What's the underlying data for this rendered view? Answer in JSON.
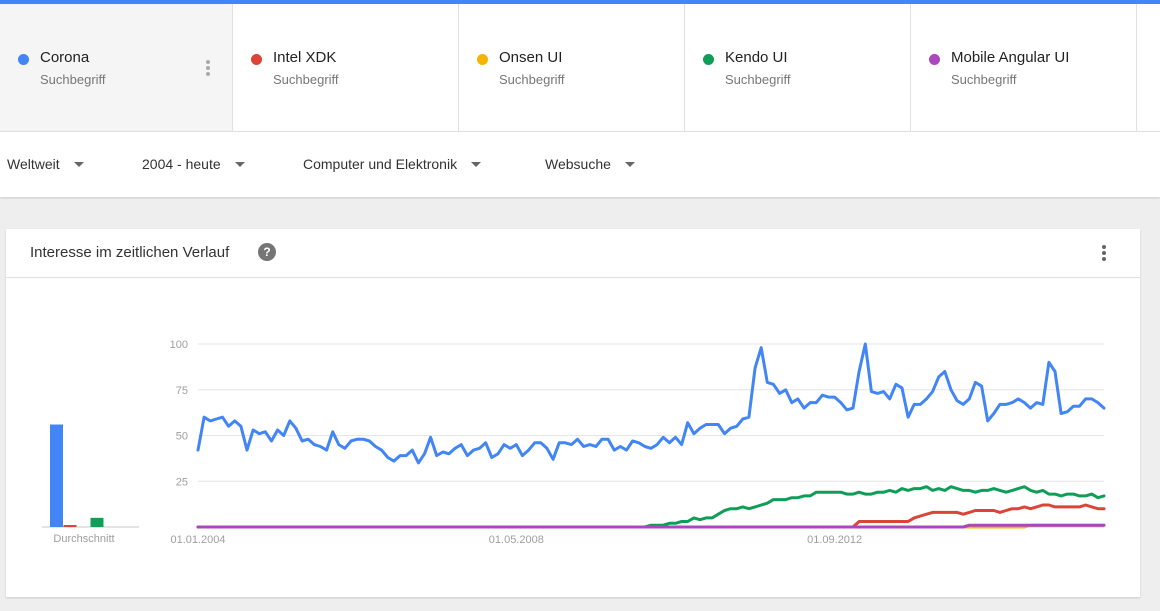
{
  "terms": [
    {
      "name": "Corona",
      "sub": "Suchbegriff",
      "color": "#4285f4"
    },
    {
      "name": "Intel XDK",
      "sub": "Suchbegriff",
      "color": "#db4437"
    },
    {
      "name": "Onsen UI",
      "sub": "Suchbegriff",
      "color": "#f4b400"
    },
    {
      "name": "Kendo UI",
      "sub": "Suchbegriff",
      "color": "#0f9d58"
    },
    {
      "name": "Mobile Angular UI",
      "sub": "Suchbegriff",
      "color": "#ab47bc"
    }
  ],
  "filters": {
    "region": "Weltweit",
    "time": "2004 - heute",
    "category": "Computer und Elektronik",
    "search_type": "Websuche"
  },
  "card": {
    "title": "Interesse im zeitlichen Verlauf",
    "help_icon": "?"
  },
  "chart_data": {
    "type": "line",
    "ylim": [
      0,
      100
    ],
    "y_ticks": [
      "100",
      "75",
      "50",
      "25"
    ],
    "x_ticks": [
      {
        "label": "01.01.2004",
        "index": 0
      },
      {
        "label": "01.05.2008",
        "index": 52
      },
      {
        "label": "01.09.2012",
        "index": 104
      }
    ],
    "average_label": "Durchschnitt",
    "averages": [
      {
        "name": "Corona",
        "value": 56,
        "color": "#4285f4"
      },
      {
        "name": "Intel XDK",
        "value": 1,
        "color": "#db4437"
      },
      {
        "name": "Onsen UI",
        "value": 0,
        "color": "#f4b400"
      },
      {
        "name": "Kendo UI",
        "value": 5,
        "color": "#0f9d58"
      },
      {
        "name": "Mobile Angular UI",
        "value": 0,
        "color": "#ab47bc"
      }
    ],
    "series": [
      {
        "name": "Corona",
        "color": "#4285f4",
        "values": [
          42,
          60,
          58,
          59,
          60,
          55,
          58,
          55,
          42,
          53,
          51,
          52,
          47,
          53,
          50,
          58,
          54,
          47,
          48,
          45,
          44,
          42,
          52,
          45,
          43,
          47,
          48,
          48,
          47,
          44,
          42,
          38,
          36,
          39,
          39,
          42,
          35,
          40,
          49,
          39,
          41,
          40,
          43,
          45,
          39,
          42,
          43,
          46,
          38,
          40,
          45,
          43,
          45,
          39,
          42,
          46,
          46,
          43,
          37,
          46,
          46,
          45,
          48,
          44,
          45,
          44,
          48,
          48,
          42,
          44,
          42,
          47,
          46,
          44,
          43,
          45,
          49,
          46,
          49,
          45,
          57,
          51,
          54,
          56,
          56,
          56,
          51,
          54,
          55,
          59,
          60,
          87,
          98,
          79,
          78,
          73,
          75,
          68,
          70,
          65,
          68,
          68,
          72,
          71,
          71,
          68,
          64,
          65,
          85,
          100,
          74,
          73,
          74,
          70,
          78,
          76,
          60,
          67,
          67,
          70,
          74,
          82,
          85,
          75,
          69,
          67,
          70,
          79,
          77,
          58,
          62,
          67,
          67,
          68,
          70,
          68,
          65,
          68,
          67,
          90,
          85,
          62,
          63,
          66,
          66,
          70,
          70,
          68,
          65
        ],
        "x_start": 0
      },
      {
        "name": "Intel XDK",
        "color": "#db4437",
        "values": [
          0,
          0,
          0,
          0,
          0,
          0,
          0,
          0,
          0,
          0,
          0,
          0,
          0,
          0,
          3,
          3,
          3,
          3,
          3,
          3,
          3,
          3,
          3,
          5,
          6,
          7,
          8,
          8,
          8,
          8,
          8,
          7,
          8,
          9,
          9,
          9,
          9,
          8,
          9,
          10,
          10,
          11,
          10,
          11,
          12,
          12,
          11,
          11,
          11,
          11,
          11,
          12,
          11,
          10,
          10
        ],
        "x_start": 94
      },
      {
        "name": "Onsen UI",
        "color": "#f4b400",
        "values": [
          0,
          0,
          0,
          0,
          0,
          0,
          0,
          0,
          0,
          0,
          1,
          1,
          1,
          1,
          1,
          1,
          1,
          1,
          1,
          1,
          1,
          1,
          1
        ],
        "x_start": 126
      },
      {
        "name": "Kendo UI",
        "color": "#0f9d58",
        "values": [
          0,
          0,
          0,
          1,
          1,
          1,
          2,
          2,
          3,
          3,
          5,
          4,
          5,
          5,
          7,
          9,
          10,
          10,
          11,
          10,
          11,
          12,
          13,
          15,
          15,
          15,
          16,
          16,
          17,
          17,
          19,
          19,
          19,
          19,
          19,
          18,
          18,
          19,
          18,
          18,
          19,
          19,
          20,
          19,
          21,
          20,
          21,
          21,
          22,
          20,
          21,
          20,
          22,
          21,
          20,
          20,
          19,
          20,
          20,
          21,
          20,
          19,
          20,
          21,
          22,
          20,
          19,
          20,
          18,
          18,
          17,
          18,
          18,
          17,
          17,
          18,
          16,
          17
        ],
        "x_start": 71
      },
      {
        "name": "Mobile Angular UI",
        "color": "#ab47bc",
        "values": [
          0,
          0,
          0,
          0,
          0,
          0,
          0,
          0,
          0,
          0,
          0,
          1,
          1,
          1,
          1,
          1,
          1,
          1,
          1,
          1,
          1,
          1,
          1,
          1,
          1,
          1,
          1,
          1,
          1,
          1,
          1,
          1,
          1,
          1
        ],
        "x_start": 115
      }
    ]
  }
}
